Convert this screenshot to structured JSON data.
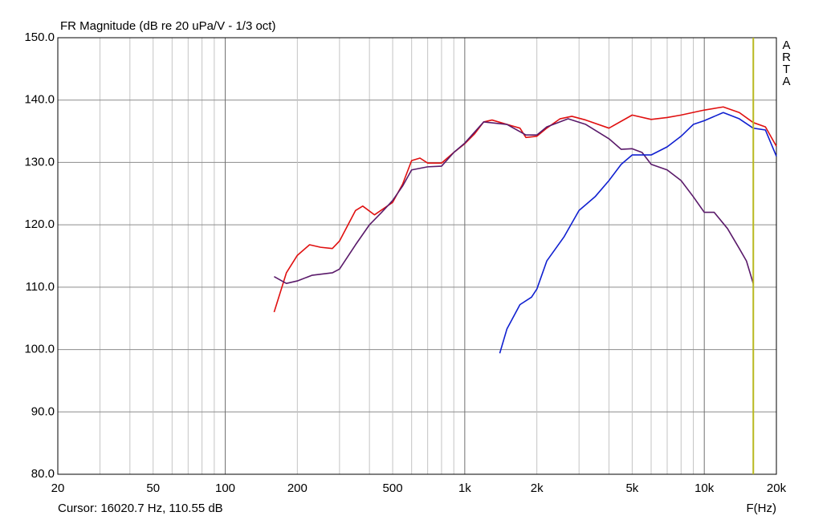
{
  "chart_data": {
    "type": "line",
    "title": "FR Magnitude (dB re 20 uPa/V - 1/3 oct)",
    "x_label": "F(Hz)",
    "cursor_text": "Cursor: 16020.7 Hz, 110.55 dB",
    "cursor_x": 16020.7,
    "cursor_color": "#b8b820",
    "watermark": "ARTA",
    "x_scale": "log",
    "grid": true,
    "xlim": [
      20,
      20000
    ],
    "ylim": [
      80,
      150
    ],
    "xticks": [
      20,
      50,
      100,
      200,
      500,
      {
        "value": 1000,
        "label": "1k"
      },
      {
        "value": 2000,
        "label": "2k"
      },
      {
        "value": 5000,
        "label": "5k"
      },
      {
        "value": 10000,
        "label": "10k"
      },
      {
        "value": 20000,
        "label": "20k"
      }
    ],
    "minor_xticks": [
      30,
      40,
      60,
      70,
      80,
      90,
      300,
      400,
      600,
      700,
      800,
      900,
      3000,
      4000,
      6000,
      7000,
      8000,
      9000
    ],
    "yticks": [
      {
        "value": 80,
        "label": "80.0"
      },
      {
        "value": 90,
        "label": "90.0"
      },
      {
        "value": 100,
        "label": "100.0"
      },
      {
        "value": 110,
        "label": "110.0"
      },
      {
        "value": 120,
        "label": "120.0"
      },
      {
        "value": 130,
        "label": "130.0"
      },
      {
        "value": 140,
        "label": "140.0"
      },
      {
        "value": 150,
        "label": "150.0"
      }
    ],
    "series": [
      {
        "color": "#e01010",
        "x": [
          160,
          180,
          200,
          225,
          250,
          280,
          300,
          350,
          375,
          420,
          500,
          550,
          600,
          650,
          700,
          800,
          900,
          1000,
          1100,
          1200,
          1300,
          1500,
          1700,
          1800,
          2000,
          2200,
          2500,
          2800,
          3200,
          4000,
          5000,
          6000,
          7000,
          8000,
          10000,
          12000,
          14000,
          16000,
          18000,
          20000
        ],
        "values": [
          106,
          112.3,
          115.1,
          116.8,
          116.4,
          116.2,
          117.4,
          122.3,
          123,
          121.6,
          123.6,
          126.5,
          130.3,
          130.7,
          129.9,
          129.9,
          131.6,
          133,
          134.6,
          136.5,
          136.8,
          136.1,
          135.5,
          134,
          134.2,
          135.5,
          137,
          137.4,
          136.8,
          135.5,
          137.6,
          136.9,
          137.2,
          137.6,
          138.4,
          138.9,
          138,
          136.4,
          135.7,
          132.6
        ]
      },
      {
        "color": "#5a1a6a",
        "x": [
          160,
          180,
          200,
          230,
          280,
          300,
          350,
          400,
          450,
          500,
          550,
          600,
          700,
          800,
          900,
          1000,
          1200,
          1500,
          1800,
          2000,
          2200,
          2700,
          3200,
          4000,
          4500,
          5000,
          5500,
          6000,
          7000,
          8000,
          9000,
          10000,
          11000,
          12500,
          14000,
          15000,
          16000
        ],
        "values": [
          111.7,
          110.6,
          111,
          111.9,
          112.3,
          112.9,
          116.8,
          120,
          122,
          123.9,
          126.2,
          128.8,
          129.3,
          129.4,
          131.6,
          133.1,
          136.5,
          136.1,
          134.4,
          134.4,
          135.7,
          137,
          136.1,
          133.8,
          132.1,
          132.2,
          131.6,
          129.7,
          128.8,
          127.1,
          124.5,
          122,
          122,
          119.4,
          116.2,
          114.2,
          110.6
        ]
      },
      {
        "color": "#1020d0",
        "x": [
          1400,
          1500,
          1700,
          1900,
          2000,
          2200,
          2600,
          3000,
          3500,
          4000,
          4500,
          5000,
          6000,
          7000,
          8000,
          9000,
          10000,
          12000,
          14000,
          16000,
          18000,
          20000
        ],
        "values": [
          99.4,
          103.3,
          107.2,
          108.4,
          109.7,
          114.2,
          118.1,
          122.3,
          124.5,
          127.1,
          129.7,
          131.2,
          131.2,
          132.5,
          134.2,
          136.1,
          136.7,
          138,
          137,
          135.5,
          135.2,
          131
        ]
      }
    ]
  }
}
